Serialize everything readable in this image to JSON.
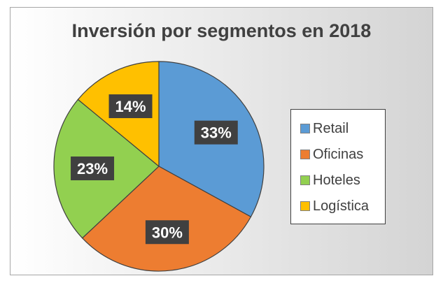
{
  "chart_data": {
    "type": "pie",
    "title": "Inversión por segmentos en 2018",
    "categories": [
      "Retail",
      "Oficinas",
      "Hoteles",
      "Logística"
    ],
    "values": [
      33,
      30,
      23,
      14
    ],
    "data_labels": [
      "33%",
      "30%",
      "23%",
      "14%"
    ],
    "colors": [
      "#5b9bd5",
      "#ed7d31",
      "#92d050",
      "#ffc000"
    ],
    "legend_position": "right",
    "grid": false
  }
}
